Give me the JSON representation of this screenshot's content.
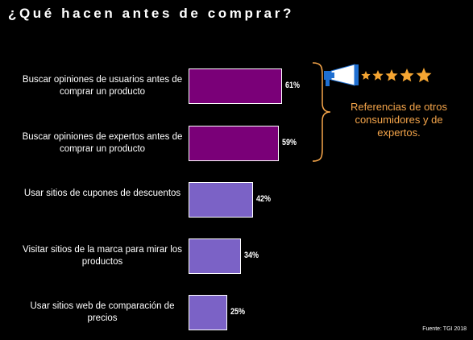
{
  "title": "¿Qué hacen antes de comprar?",
  "source": "Fuente: TGI 2018",
  "callout": {
    "text": "Referencias de otros consumidores y de expertos.",
    "color": "#f5a54a",
    "icons": [
      "megaphone-icon",
      "star-icon",
      "star-icon",
      "star-icon",
      "star-icon",
      "star-icon"
    ]
  },
  "colors": {
    "highlight": "#7a0078",
    "normal": "#7b62c6",
    "background": "#000000"
  },
  "chart_data": {
    "type": "bar",
    "orientation": "horizontal",
    "title": "¿Qué hacen antes de comprar?",
    "categories": [
      "Buscar opiniones de usuarios antes de comprar un producto",
      "Buscar opiniones de expertos antes de comprar un producto",
      "Usar sitios de cupones de descuentos",
      "Visitar sitios de la marca para mirar los productos",
      "Usar sitios web de comparación de precios"
    ],
    "values": [
      61,
      59,
      42,
      34,
      25
    ],
    "value_labels": [
      "61%",
      "59%",
      "42%",
      "34%",
      "25%"
    ],
    "highlighted": [
      true,
      true,
      false,
      false,
      false
    ],
    "xlim": [
      0,
      100
    ],
    "grid": false
  }
}
